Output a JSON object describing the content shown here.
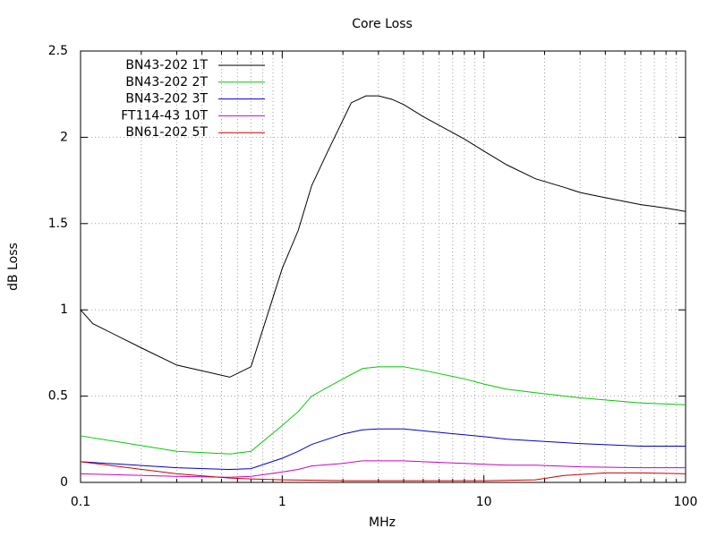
{
  "chart_data": {
    "type": "line",
    "title": "Core Loss",
    "x_label": "MHz",
    "y_label": "dB Loss",
    "xlog": true,
    "grid": true,
    "legend": "top-left",
    "xlim": [
      0.1,
      100
    ],
    "xticks": [
      0.1,
      1,
      10,
      100
    ],
    "xminorticks": [
      0.2,
      0.3,
      0.4,
      0.5,
      0.6,
      0.7,
      0.8,
      0.9,
      2,
      3,
      4,
      5,
      6,
      7,
      8,
      9,
      20,
      30,
      40,
      50,
      60,
      70,
      80,
      90
    ],
    "ylim": [
      0,
      2.5
    ],
    "yticks": [
      0,
      0.5,
      1,
      1.5,
      2,
      2.5
    ],
    "series": [
      {
        "name": "BN43-202 1T",
        "color": "#000000",
        "x": [
          0.1,
          0.115,
          0.2,
          0.3,
          0.55,
          0.7,
          1,
          1.2,
          1.4,
          1.7,
          2,
          2.2,
          2.6,
          3,
          3.5,
          4,
          5,
          8,
          10,
          13,
          18,
          25,
          30,
          40,
          60,
          80,
          100
        ],
        "values": [
          1.0,
          0.92,
          0.78,
          0.68,
          0.61,
          0.67,
          1.24,
          1.46,
          1.72,
          1.93,
          2.1,
          2.2,
          2.24,
          2.24,
          2.22,
          2.19,
          2.12,
          1.99,
          1.92,
          1.84,
          1.76,
          1.71,
          1.68,
          1.65,
          1.61,
          1.59,
          1.57
        ]
      },
      {
        "name": "BN43-202 2T",
        "color": "#00cc00",
        "x": [
          0.1,
          0.3,
          0.55,
          0.7,
          1,
          1.2,
          1.4,
          2,
          2.5,
          3,
          4,
          5,
          8,
          10,
          13,
          18,
          30,
          60,
          100
        ],
        "values": [
          0.27,
          0.18,
          0.165,
          0.18,
          0.33,
          0.41,
          0.5,
          0.6,
          0.66,
          0.67,
          0.67,
          0.65,
          0.6,
          0.57,
          0.54,
          0.52,
          0.49,
          0.46,
          0.45
        ]
      },
      {
        "name": "BN43-202 3T",
        "color": "#0000cc",
        "x": [
          0.1,
          0.3,
          0.55,
          0.7,
          1,
          1.2,
          1.4,
          2,
          2.5,
          3,
          4,
          6,
          10,
          13,
          30,
          60,
          100
        ],
        "values": [
          0.12,
          0.085,
          0.075,
          0.08,
          0.14,
          0.18,
          0.22,
          0.28,
          0.305,
          0.31,
          0.31,
          0.29,
          0.265,
          0.25,
          0.225,
          0.21,
          0.21
        ]
      },
      {
        "name": "FT114-43 10T",
        "color": "#cc00cc",
        "x": [
          0.1,
          0.3,
          0.55,
          0.7,
          1,
          1.2,
          1.4,
          2,
          2.5,
          4,
          5,
          8,
          10,
          13,
          18,
          30,
          60,
          100
        ],
        "values": [
          0.05,
          0.035,
          0.03,
          0.035,
          0.06,
          0.075,
          0.095,
          0.11,
          0.125,
          0.125,
          0.12,
          0.11,
          0.105,
          0.1,
          0.1,
          0.09,
          0.085,
          0.085
        ]
      },
      {
        "name": "BN61-202 5T",
        "color": "#cc0000",
        "x": [
          0.1,
          0.3,
          0.55,
          0.7,
          1,
          2,
          4,
          10,
          18,
          25,
          40,
          60,
          100
        ],
        "values": [
          0.12,
          0.05,
          0.025,
          0.02,
          0.015,
          0.01,
          0.01,
          0.01,
          0.015,
          0.04,
          0.055,
          0.055,
          0.05
        ]
      }
    ]
  }
}
